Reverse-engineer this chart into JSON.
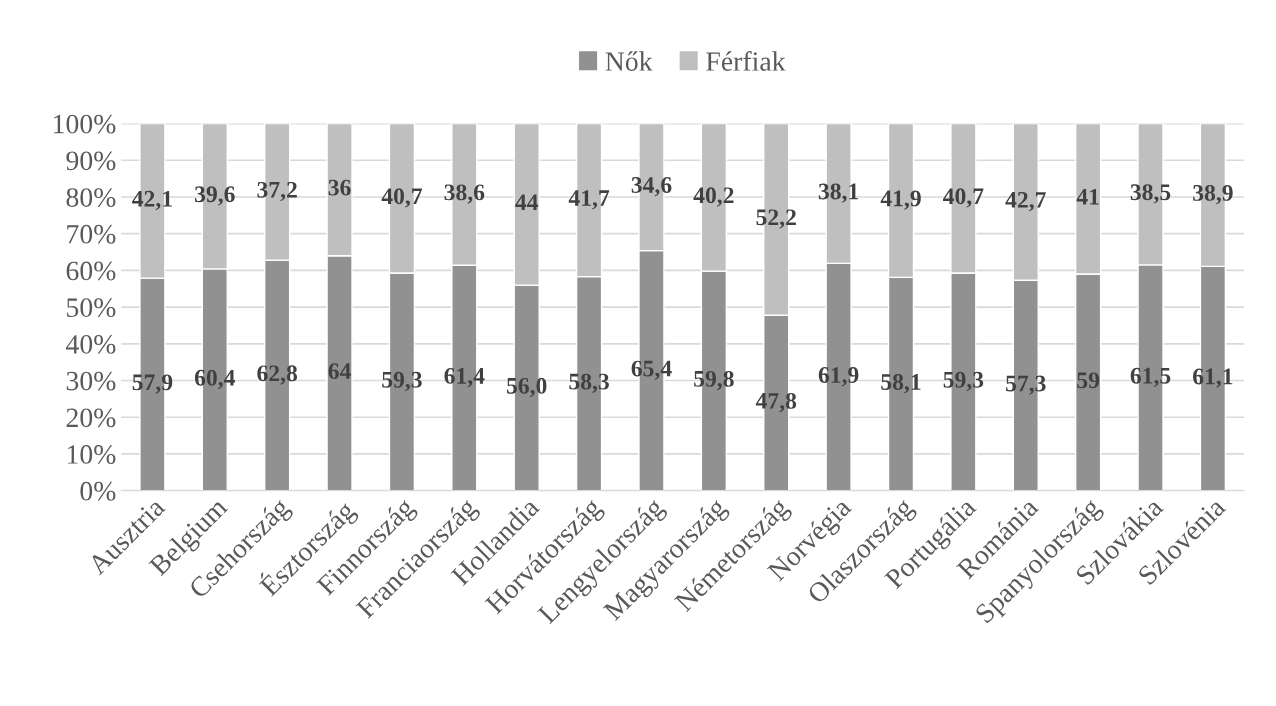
{
  "chart_data": {
    "type": "bar",
    "stacked": true,
    "categories": [
      "Ausztria",
      "Belgium",
      "Csehország",
      "Észtország",
      "Finnország",
      "Franciaország",
      "Hollandia",
      "Horvátország",
      "Lengyelország",
      "Magyarország",
      "Németország",
      "Norvégia",
      "Olaszország",
      "Portugália",
      "Románia",
      "Spanyolország",
      "Szlovákia",
      "Szlovénia"
    ],
    "series": [
      {
        "name": "Nők",
        "color": "#919191",
        "values": [
          57.9,
          60.4,
          62.8,
          64,
          59.3,
          61.4,
          56.0,
          58.3,
          65.4,
          59.8,
          47.8,
          61.9,
          58.1,
          59.3,
          57.3,
          59,
          61.5,
          61.1
        ],
        "value_labels": [
          "57,9",
          "60,4",
          "62,8",
          "64",
          "59,3",
          "61,4",
          "56,0",
          "58,3",
          "65,4",
          "59,8",
          "47,8",
          "61,9",
          "58,1",
          "59,3",
          "57,3",
          "59",
          "61,5",
          "61,1"
        ]
      },
      {
        "name": "Férfiak",
        "color": "#bfbfbf",
        "values": [
          42.1,
          39.6,
          37.2,
          36,
          40.7,
          38.6,
          44,
          41.7,
          34.6,
          40.2,
          52.2,
          38.1,
          41.9,
          40.7,
          42.7,
          41,
          38.5,
          38.9
        ],
        "value_labels": [
          "42,1",
          "39,6",
          "37,2",
          "36",
          "40,7",
          "38,6",
          "44",
          "41,7",
          "34,6",
          "40,2",
          "52,2",
          "38,1",
          "41,9",
          "40,7",
          "42,7",
          "41",
          "38,5",
          "38,9"
        ]
      }
    ],
    "ylim": [
      0,
      100
    ],
    "yticks": [
      {
        "value": 0,
        "label": "0%"
      },
      {
        "value": 10,
        "label": "10%"
      },
      {
        "value": 20,
        "label": "20%"
      },
      {
        "value": 30,
        "label": "30%"
      },
      {
        "value": 40,
        "label": "40%"
      },
      {
        "value": 50,
        "label": "50%"
      },
      {
        "value": 60,
        "label": "60%"
      },
      {
        "value": 70,
        "label": "70%"
      },
      {
        "value": 80,
        "label": "80%"
      },
      {
        "value": 90,
        "label": "90%"
      },
      {
        "value": 100,
        "label": "100%"
      }
    ],
    "grid": "y",
    "legend": "top"
  }
}
